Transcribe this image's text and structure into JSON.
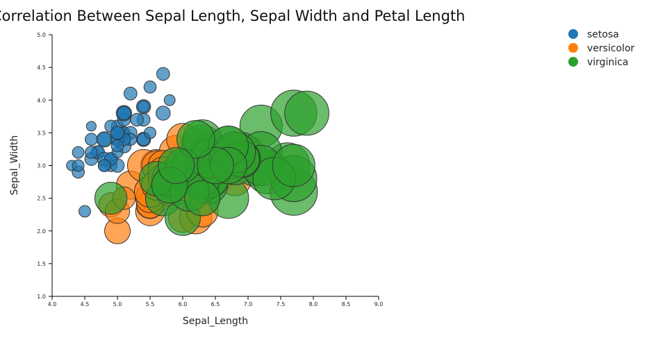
{
  "chart_data": {
    "type": "scatter",
    "title": "Correlation Between Sepal Length, Sepal Width and Petal Length",
    "xlabel": "Sepal_Length",
    "ylabel": "Sepal_Width",
    "xlim": [
      4.0,
      9.0
    ],
    "ylim": [
      1.0,
      5.0
    ],
    "x_ticks": [
      4.0,
      4.5,
      5.0,
      5.5,
      6.0,
      6.5,
      7.0,
      7.5,
      8.0,
      8.5,
      9.0
    ],
    "y_ticks": [
      1.0,
      1.5,
      2.0,
      2.5,
      3.0,
      3.5,
      4.0,
      4.5,
      5.0
    ],
    "size_encoding": "Petal Length",
    "grid": false,
    "legend_position": "top-right",
    "series": [
      {
        "name": "setosa",
        "color": "#1f77b4",
        "points": [
          [
            5.1,
            3.5,
            1.4
          ],
          [
            4.9,
            3.0,
            1.4
          ],
          [
            4.7,
            3.2,
            1.3
          ],
          [
            4.6,
            3.1,
            1.5
          ],
          [
            5.0,
            3.6,
            1.4
          ],
          [
            5.4,
            3.9,
            1.7
          ],
          [
            4.6,
            3.4,
            1.4
          ],
          [
            5.0,
            3.4,
            1.5
          ],
          [
            4.4,
            2.9,
            1.4
          ],
          [
            4.9,
            3.1,
            1.5
          ],
          [
            5.4,
            3.7,
            1.5
          ],
          [
            4.8,
            3.4,
            1.6
          ],
          [
            4.8,
            3.0,
            1.4
          ],
          [
            4.3,
            3.0,
            1.1
          ],
          [
            5.8,
            4.0,
            1.2
          ],
          [
            5.7,
            4.4,
            1.5
          ],
          [
            5.4,
            3.9,
            1.3
          ],
          [
            5.1,
            3.5,
            1.4
          ],
          [
            5.7,
            3.8,
            1.7
          ],
          [
            5.1,
            3.8,
            1.5
          ],
          [
            5.4,
            3.4,
            1.7
          ],
          [
            5.1,
            3.7,
            1.5
          ],
          [
            4.6,
            3.6,
            1.0
          ],
          [
            5.1,
            3.3,
            1.7
          ],
          [
            4.8,
            3.4,
            1.9
          ],
          [
            5.0,
            3.0,
            1.6
          ],
          [
            5.0,
            3.4,
            1.6
          ],
          [
            5.2,
            3.5,
            1.5
          ],
          [
            5.2,
            3.4,
            1.4
          ],
          [
            4.7,
            3.2,
            1.6
          ],
          [
            4.8,
            3.1,
            1.6
          ],
          [
            5.4,
            3.4,
            1.5
          ],
          [
            5.2,
            4.1,
            1.5
          ],
          [
            5.5,
            4.2,
            1.4
          ],
          [
            4.9,
            3.1,
            1.5
          ],
          [
            5.0,
            3.2,
            1.2
          ],
          [
            5.5,
            3.5,
            1.3
          ],
          [
            4.9,
            3.6,
            1.4
          ],
          [
            4.4,
            3.0,
            1.3
          ],
          [
            5.1,
            3.4,
            1.5
          ],
          [
            5.0,
            3.5,
            1.3
          ],
          [
            4.5,
            2.3,
            1.3
          ],
          [
            4.4,
            3.2,
            1.3
          ],
          [
            5.0,
            3.5,
            1.6
          ],
          [
            5.1,
            3.8,
            1.9
          ],
          [
            4.8,
            3.0,
            1.4
          ],
          [
            5.1,
            3.8,
            1.6
          ],
          [
            4.6,
            3.2,
            1.4
          ],
          [
            5.3,
            3.7,
            1.5
          ],
          [
            5.0,
            3.3,
            1.4
          ]
        ]
      },
      {
        "name": "versicolor",
        "color": "#ff7f0e",
        "points": [
          [
            7.0,
            3.2,
            4.7
          ],
          [
            6.4,
            3.2,
            4.5
          ],
          [
            6.9,
            3.1,
            4.9
          ],
          [
            5.5,
            2.3,
            4.0
          ],
          [
            6.5,
            2.8,
            4.6
          ],
          [
            5.7,
            2.8,
            4.5
          ],
          [
            6.3,
            3.3,
            4.7
          ],
          [
            4.9,
            2.4,
            3.3
          ],
          [
            6.6,
            2.9,
            4.6
          ],
          [
            5.2,
            2.7,
            3.9
          ],
          [
            5.0,
            2.0,
            3.5
          ],
          [
            5.9,
            3.0,
            4.2
          ],
          [
            6.0,
            2.2,
            4.0
          ],
          [
            6.1,
            2.9,
            4.7
          ],
          [
            5.6,
            2.9,
            3.6
          ],
          [
            6.7,
            3.1,
            4.4
          ],
          [
            5.6,
            3.0,
            4.5
          ],
          [
            5.8,
            2.7,
            4.1
          ],
          [
            6.2,
            2.2,
            4.5
          ],
          [
            5.6,
            2.5,
            3.9
          ],
          [
            5.9,
            3.2,
            4.8
          ],
          [
            6.1,
            2.8,
            4.0
          ],
          [
            6.3,
            2.5,
            4.9
          ],
          [
            6.1,
            2.8,
            4.7
          ],
          [
            6.4,
            2.9,
            4.3
          ],
          [
            6.6,
            3.0,
            4.4
          ],
          [
            6.8,
            2.8,
            4.8
          ],
          [
            6.7,
            3.0,
            5.0
          ],
          [
            6.0,
            2.9,
            4.5
          ],
          [
            5.7,
            2.6,
            3.5
          ],
          [
            5.5,
            2.4,
            3.8
          ],
          [
            5.5,
            2.4,
            3.7
          ],
          [
            5.8,
            2.7,
            3.9
          ],
          [
            6.0,
            2.7,
            5.1
          ],
          [
            5.4,
            3.0,
            4.5
          ],
          [
            6.0,
            3.4,
            4.5
          ],
          [
            6.7,
            3.1,
            4.7
          ],
          [
            6.3,
            2.3,
            4.4
          ],
          [
            5.6,
            3.0,
            4.1
          ],
          [
            5.5,
            2.5,
            4.0
          ],
          [
            5.5,
            2.6,
            4.4
          ],
          [
            6.1,
            3.0,
            4.6
          ],
          [
            5.8,
            2.6,
            4.0
          ],
          [
            5.0,
            2.3,
            3.3
          ],
          [
            5.6,
            2.7,
            4.2
          ],
          [
            5.7,
            3.0,
            4.2
          ],
          [
            5.7,
            2.9,
            4.2
          ],
          [
            6.2,
            2.9,
            4.3
          ],
          [
            5.1,
            2.5,
            3.0
          ],
          [
            5.7,
            2.8,
            4.1
          ]
        ]
      },
      {
        "name": "virginica",
        "color": "#2ca02c",
        "points": [
          [
            6.3,
            3.3,
            6.0
          ],
          [
            5.8,
            2.7,
            5.1
          ],
          [
            7.1,
            3.0,
            5.9
          ],
          [
            6.3,
            2.9,
            5.6
          ],
          [
            6.5,
            3.0,
            5.8
          ],
          [
            7.6,
            3.0,
            6.6
          ],
          [
            4.9,
            2.5,
            4.5
          ],
          [
            7.3,
            2.9,
            6.3
          ],
          [
            6.7,
            2.5,
            5.8
          ],
          [
            7.2,
            3.6,
            6.1
          ],
          [
            6.5,
            3.2,
            5.1
          ],
          [
            6.4,
            2.7,
            5.3
          ],
          [
            6.8,
            3.0,
            5.5
          ],
          [
            5.7,
            2.5,
            5.0
          ],
          [
            5.8,
            2.8,
            5.1
          ],
          [
            6.4,
            3.2,
            5.3
          ],
          [
            6.5,
            3.0,
            5.5
          ],
          [
            7.7,
            3.8,
            6.7
          ],
          [
            7.7,
            2.6,
            6.9
          ],
          [
            6.0,
            2.2,
            5.0
          ],
          [
            6.9,
            3.2,
            5.7
          ],
          [
            5.6,
            2.8,
            4.9
          ],
          [
            7.7,
            2.8,
            6.7
          ],
          [
            6.3,
            2.7,
            4.9
          ],
          [
            6.7,
            3.3,
            5.7
          ],
          [
            7.2,
            3.2,
            6.0
          ],
          [
            6.2,
            2.8,
            4.8
          ],
          [
            6.1,
            3.0,
            4.9
          ],
          [
            6.4,
            2.8,
            5.6
          ],
          [
            7.2,
            3.0,
            5.8
          ],
          [
            7.4,
            2.8,
            6.1
          ],
          [
            7.9,
            3.8,
            6.4
          ],
          [
            6.4,
            2.8,
            5.6
          ],
          [
            6.3,
            2.8,
            5.1
          ],
          [
            6.1,
            2.6,
            5.6
          ],
          [
            7.7,
            3.0,
            6.1
          ],
          [
            6.3,
            3.4,
            5.6
          ],
          [
            6.4,
            3.1,
            5.5
          ],
          [
            6.0,
            3.0,
            4.8
          ],
          [
            6.9,
            3.1,
            5.4
          ],
          [
            6.7,
            3.1,
            5.6
          ],
          [
            6.9,
            3.1,
            5.1
          ],
          [
            5.8,
            2.7,
            5.1
          ],
          [
            6.8,
            3.2,
            5.9
          ],
          [
            6.7,
            3.3,
            5.7
          ],
          [
            6.7,
            3.0,
            5.2
          ],
          [
            6.3,
            2.5,
            5.0
          ],
          [
            6.5,
            3.0,
            5.2
          ],
          [
            6.2,
            3.4,
            5.4
          ],
          [
            5.9,
            3.0,
            5.1
          ]
        ]
      }
    ]
  }
}
